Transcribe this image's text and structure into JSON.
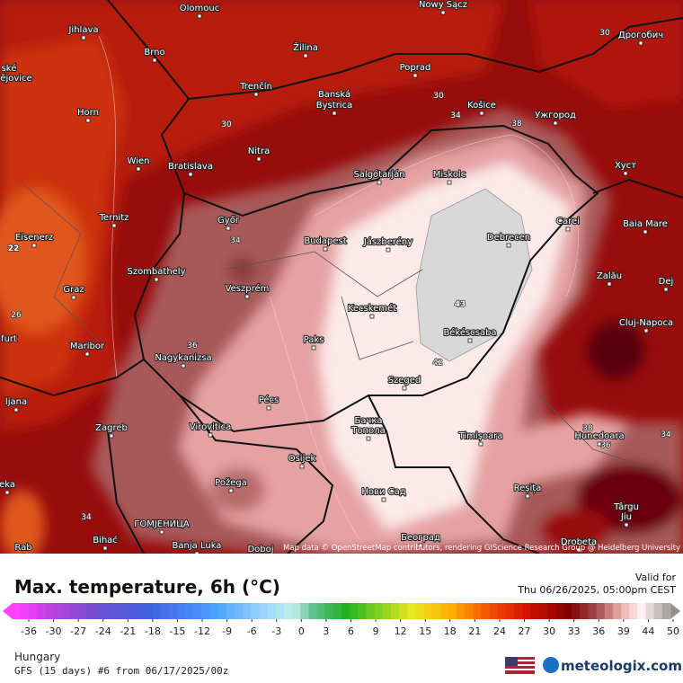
{
  "map": {
    "cities": [
      "Olomouc",
      "Nowy Sącz",
      "Дрогобич",
      "Jihlava",
      "Žilina",
      "Brno",
      "Poprad",
      "ské",
      "ějovice",
      "Trenčín",
      "Banská",
      "Bystrica",
      "Košice",
      "Horn",
      "Ужгород",
      "Nitra",
      "Wien",
      "Bratislava",
      "Salgótarján",
      "Miskolc",
      "Хуст",
      "Ternitz",
      "Győr",
      "Budapest",
      "Jászberény",
      "Debrecen",
      "Carei",
      "Baia Mare",
      "Eisenerz",
      "Szombathely",
      "Zalău",
      "Graz",
      "Veszprém",
      "Dej",
      "Kecskemét",
      "Cluj-Napoca",
      "furt",
      "Paks",
      "Maribor",
      "Békéscsaba",
      "Nagykanizsa",
      "ljana",
      "Szeged",
      "Pécs",
      "Zagreb",
      "Virovitica",
      "Бачка",
      "Топола",
      "Timișoara",
      "Hunedoara",
      "Osijek",
      "eka",
      "Požega",
      "Reșița",
      "Нови Сад",
      "Târgu",
      "Jiu",
      "Bihać",
      "ГОМЈЕНИЦА",
      "Banja Luka",
      "Doboj",
      "Београд",
      "Drobeta",
      "Rab"
    ],
    "contour_labels": [
      "30",
      "30",
      "34",
      "38",
      "30",
      "34",
      "22",
      "26",
      "43",
      "42",
      "36",
      "38",
      "36",
      "34",
      "34"
    ],
    "attribution": "Map data © OpenStreetMap contributors, rendering GIScience Research Group @ Heidelberg University"
  },
  "header": {
    "title": "Max. temperature, 6h (°C)",
    "valid_label": "Valid for",
    "valid_time": "Thu 06/26/2025, 05:00pm CEST"
  },
  "legend": {
    "ticks": [
      -36,
      -30,
      -27,
      -24,
      -21,
      -18,
      -15,
      -12,
      -9,
      -6,
      -3,
      0,
      3,
      6,
      9,
      12,
      15,
      18,
      21,
      24,
      27,
      30,
      33,
      36,
      39,
      44,
      50
    ]
  },
  "footer": {
    "region": "Hungary",
    "model": "GFS (15 days) #6 from 06/17/2025/00z",
    "brand": "meteologix.com"
  }
}
